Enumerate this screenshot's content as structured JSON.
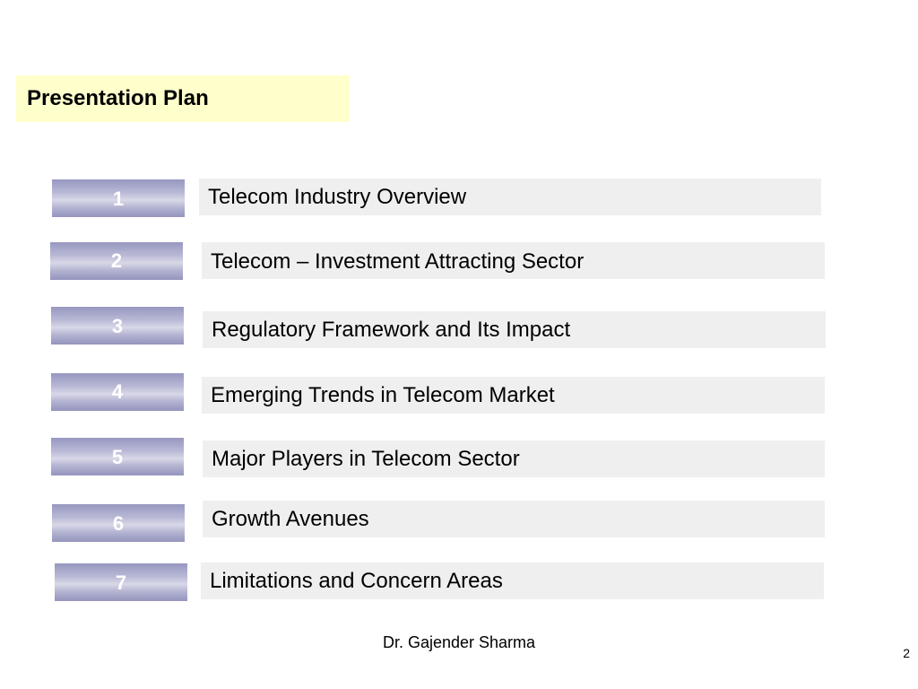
{
  "slide": {
    "title": "Presentation Plan",
    "items": [
      {
        "number": "1",
        "label": "Telecom Industry Overview"
      },
      {
        "number": "2",
        "label": "Telecom – Investment Attracting Sector"
      },
      {
        "number": "3",
        "label": "Regulatory Framework and Its Impact"
      },
      {
        "number": "4",
        "label": "Emerging Trends in Telecom Market"
      },
      {
        "number": "5",
        "label": "Major Players in Telecom Sector"
      },
      {
        "number": "6",
        "label": "Growth Avenues"
      },
      {
        "number": "7",
        "label": "Limitations and Concern Areas"
      }
    ],
    "footer": "Dr. Gajender Sharma",
    "page_number": "2"
  },
  "colors": {
    "title_background": "#ffffcc",
    "number_box": "#a9a9cc",
    "item_background": "#efefef"
  }
}
